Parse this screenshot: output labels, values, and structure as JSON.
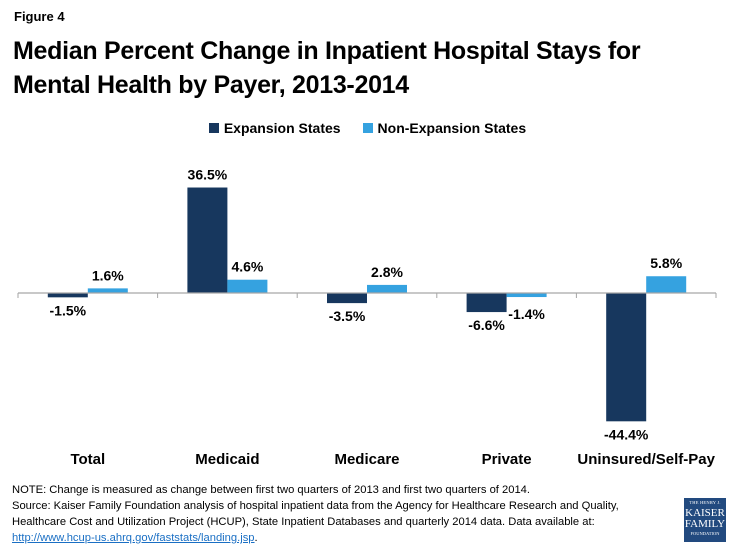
{
  "figure_label": "Figure 4",
  "colors": {
    "expansion": "#17375e",
    "non_expansion": "#35a2e0",
    "axis": "#a6a6a6"
  },
  "chart_data": {
    "type": "bar",
    "title": "Median Percent Change in Inpatient Hospital Stays for Mental Health by Payer, 2013-2014",
    "xlabel": "",
    "ylabel": "",
    "ylim": [
      -44.4,
      36.5
    ],
    "grid": false,
    "legend_position": "top-center",
    "categories": [
      "Total",
      "Medicaid",
      "Medicare",
      "Private",
      "Uninsured/Self-Pay"
    ],
    "series": [
      {
        "name": "Expansion States",
        "values": [
          -1.5,
          36.5,
          -3.5,
          -6.6,
          -44.4
        ],
        "labels": [
          "-1.5%",
          "36.5%",
          "-3.5%",
          "-6.6%",
          "-44.4%"
        ]
      },
      {
        "name": "Non-Expansion States",
        "values": [
          1.6,
          4.6,
          2.8,
          -1.4,
          5.8
        ],
        "labels": [
          "1.6%",
          "4.6%",
          "2.8%",
          "-1.4%",
          "5.8%"
        ]
      }
    ]
  },
  "footer": {
    "note": "NOTE: Change is measured as change between first two quarters of 2013 and first two quarters of 2014.",
    "source": "Source:  Kaiser Family Foundation analysis of hospital inpatient data from the Agency for Healthcare Research and Quality, Healthcare Cost and Utilization Project (HCUP), State Inpatient Databases and quarterly 2014 data. Data available at:",
    "link_text": "http://www.hcup-us.ahrq.gov/faststats/landing.jsp",
    "link_suffix": "."
  },
  "logo": {
    "line1": "THE HENRY J.",
    "line2": "KAISER",
    "line3": "FAMILY",
    "line4": "FOUNDATION"
  }
}
